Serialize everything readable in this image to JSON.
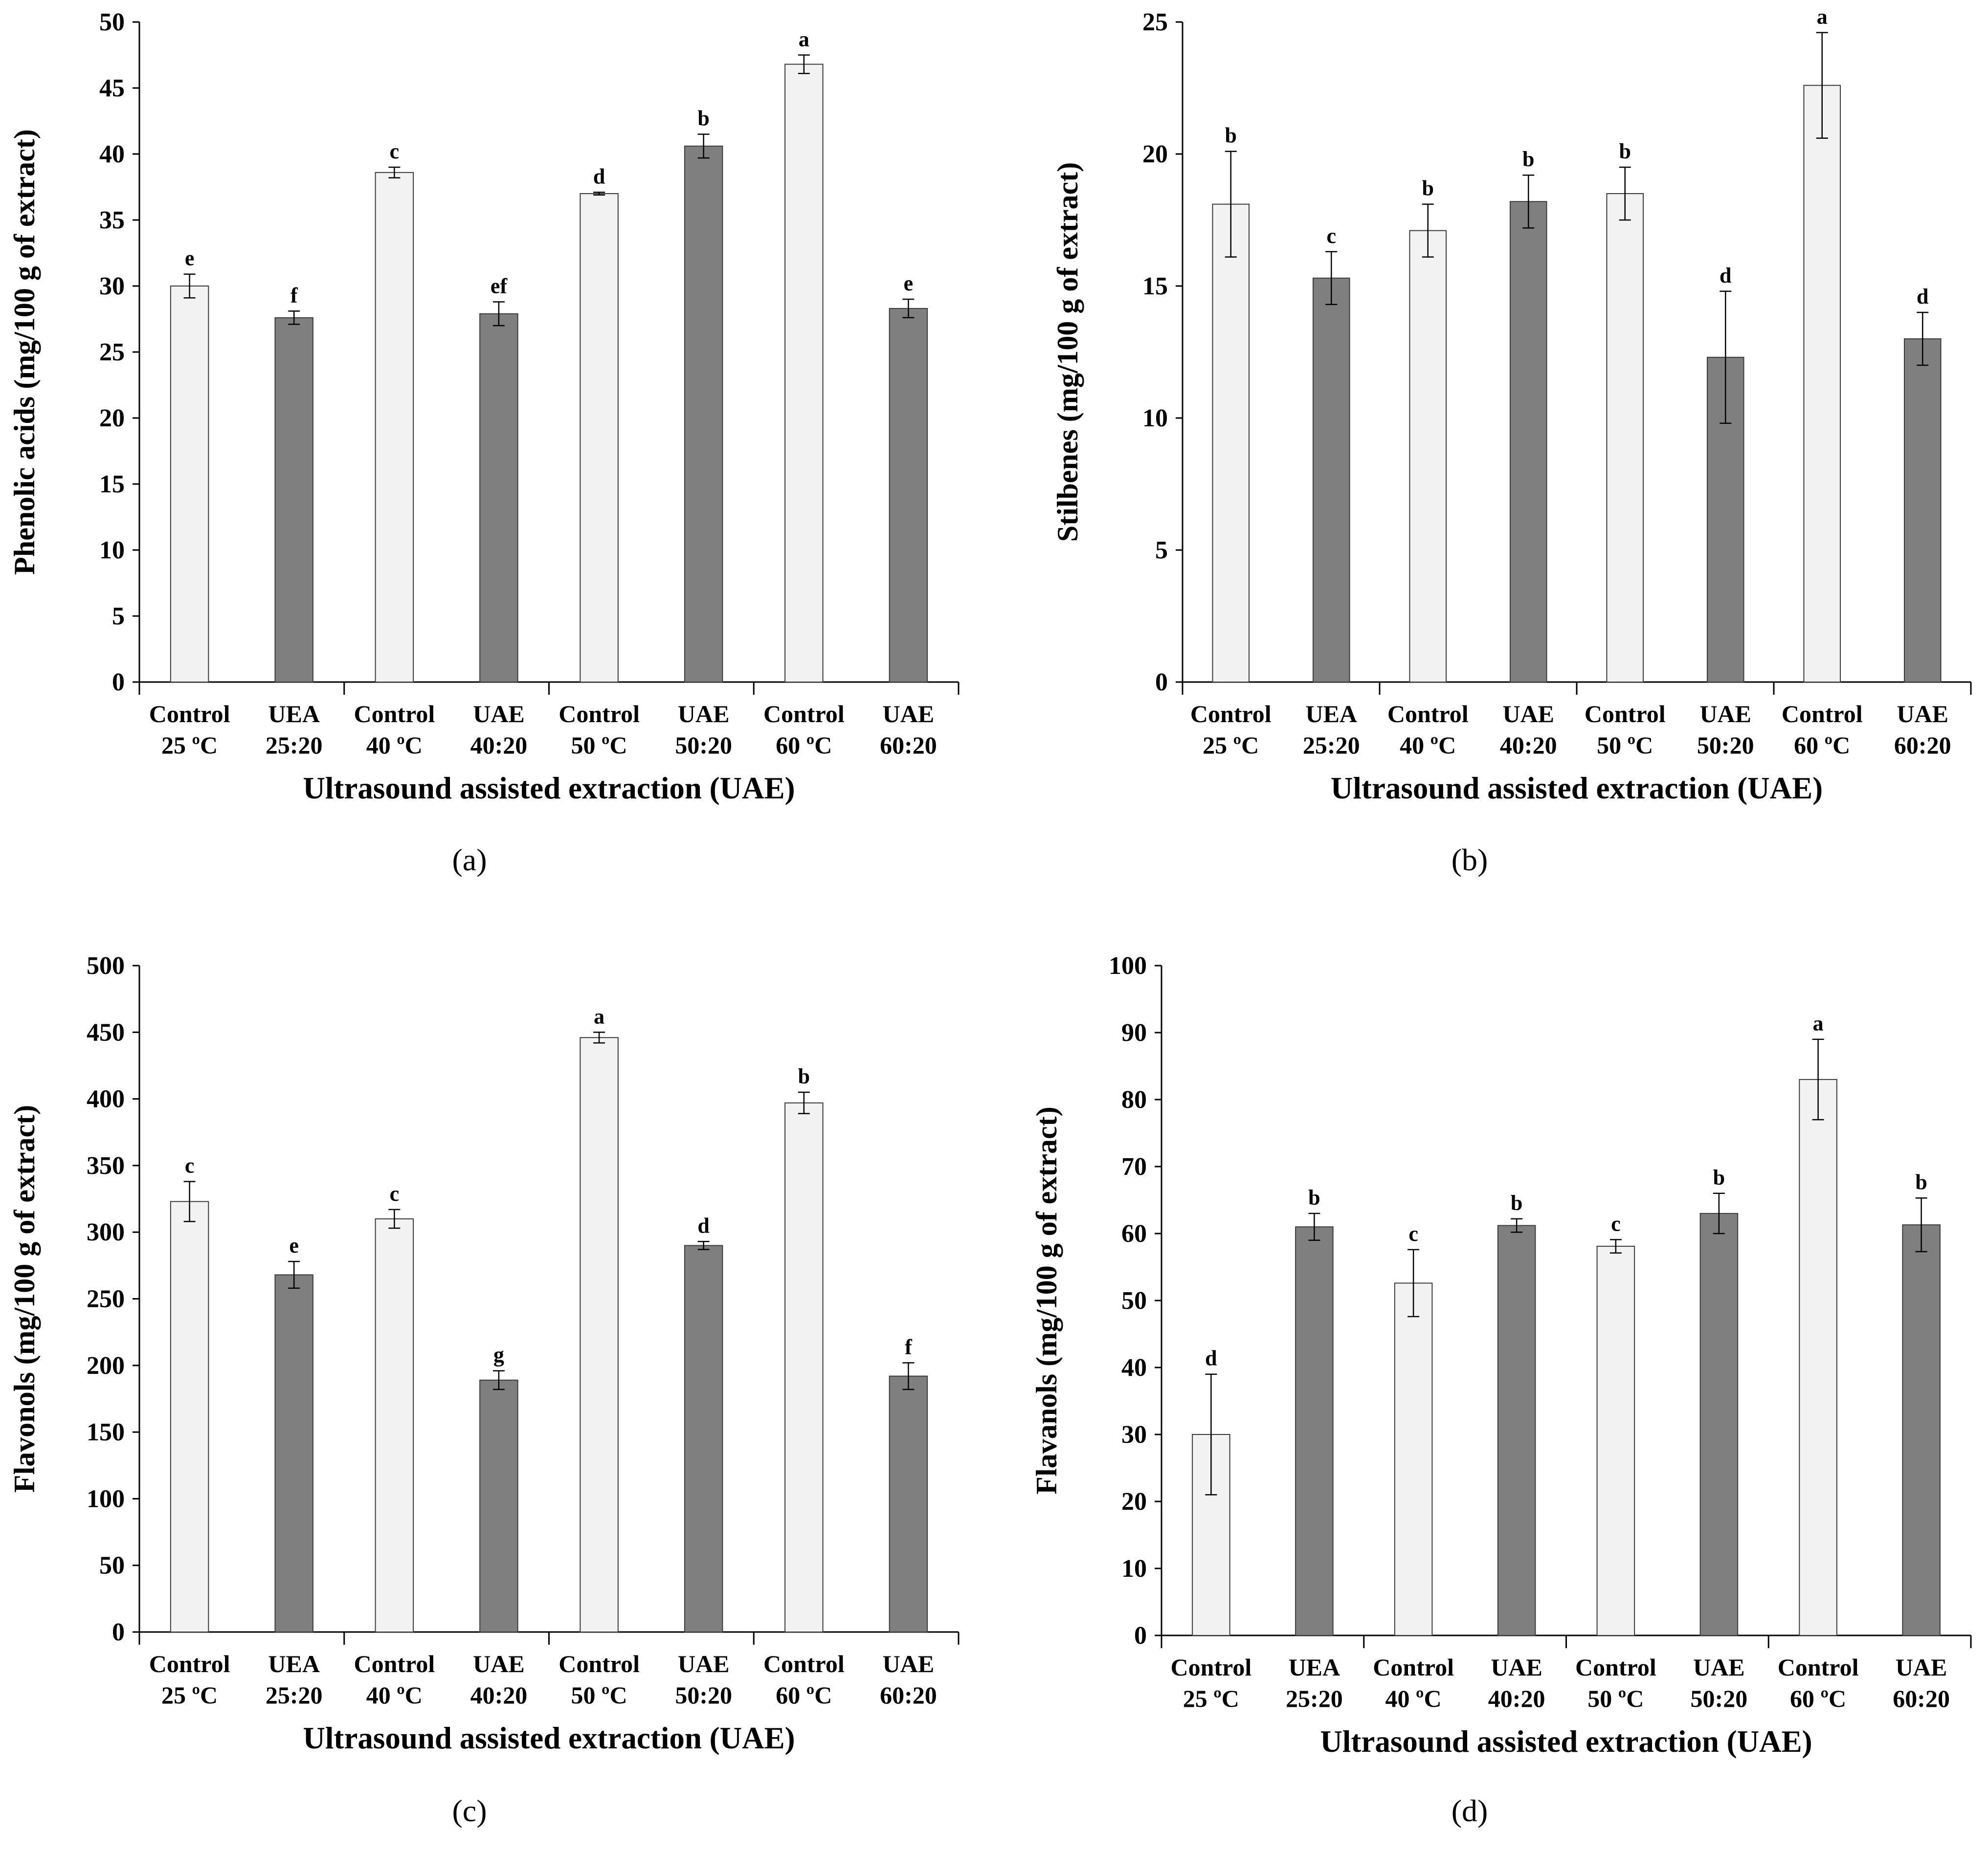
{
  "chart_data": [
    {
      "type": "bar",
      "panel_label": "(a)",
      "ylabel": "Phenolic acids (mg/100 g of extract)",
      "xlabel": "Ultrasound assisted extraction (UAE)",
      "ylim": [
        0,
        50
      ],
      "yticks": [
        "0",
        "5",
        "10",
        "15",
        "20",
        "25",
        "30",
        "35",
        "40",
        "45",
        "50"
      ],
      "categories": [
        {
          "line1": "Control",
          "line2": "25 ºC"
        },
        {
          "line1": "UEA",
          "line2": "25:20"
        },
        {
          "line1": "Control",
          "line2": "40 ºC"
        },
        {
          "line1": "UAE",
          "line2": "40:20"
        },
        {
          "line1": "Control",
          "line2": "50 ºC"
        },
        {
          "line1": "UAE",
          "line2": "50:20"
        },
        {
          "line1": "Control",
          "line2": "60 ºC"
        },
        {
          "line1": "UAE",
          "line2": "60:20"
        }
      ],
      "values": [
        30.0,
        27.6,
        38.6,
        27.9,
        37.0,
        40.6,
        46.8,
        28.3
      ],
      "errors": [
        0.9,
        0.5,
        0.4,
        0.9,
        0.1,
        0.9,
        0.7,
        0.7
      ],
      "letters": [
        "e",
        "f",
        "c",
        "ef",
        "d",
        "b",
        "a",
        "e"
      ],
      "grid": false
    },
    {
      "type": "bar",
      "panel_label": "(b)",
      "ylabel": "Stilbenes (mg/100 g of extract)",
      "xlabel": "Ultrasound assisted extraction (UAE)",
      "ylim": [
        0,
        25
      ],
      "yticks": [
        "0",
        "5",
        "10",
        "15",
        "20",
        "25"
      ],
      "categories": [
        {
          "line1": "Control",
          "line2": "25 ºC"
        },
        {
          "line1": "UEA",
          "line2": "25:20"
        },
        {
          "line1": "Control",
          "line2": "40 ºC"
        },
        {
          "line1": "UAE",
          "line2": "40:20"
        },
        {
          "line1": "Control",
          "line2": "50 ºC"
        },
        {
          "line1": "UAE",
          "line2": "50:20"
        },
        {
          "line1": "Control",
          "line2": "60 ºC"
        },
        {
          "line1": "UAE",
          "line2": "60:20"
        }
      ],
      "values": [
        18.1,
        15.3,
        17.1,
        18.2,
        18.5,
        12.3,
        22.6,
        13.0
      ],
      "errors": [
        2.0,
        1.0,
        1.0,
        1.0,
        1.0,
        2.5,
        2.0,
        1.0
      ],
      "letters": [
        "b",
        "c",
        "b",
        "b",
        "b",
        "d",
        "a",
        "d"
      ],
      "grid": false
    },
    {
      "type": "bar",
      "panel_label": "(c)",
      "ylabel": "Flavonols (mg/100 g of extract)",
      "xlabel": "Ultrasound assisted extraction (UAE)",
      "ylim": [
        0,
        500
      ],
      "yticks": [
        "0",
        "50",
        "100",
        "150",
        "200",
        "250",
        "300",
        "350",
        "400",
        "450",
        "500"
      ],
      "categories": [
        {
          "line1": "Control",
          "line2": "25 ºC"
        },
        {
          "line1": "UEA",
          "line2": "25:20"
        },
        {
          "line1": "Control",
          "line2": "40 ºC"
        },
        {
          "line1": "UAE",
          "line2": "40:20"
        },
        {
          "line1": "Control",
          "line2": "50 ºC"
        },
        {
          "line1": "UAE",
          "line2": "50:20"
        },
        {
          "line1": "Control",
          "line2": "60 ºC"
        },
        {
          "line1": "UAE",
          "line2": "60:20"
        }
      ],
      "values": [
        323,
        268,
        310,
        189,
        446,
        290,
        397,
        192
      ],
      "errors": [
        15,
        10,
        7,
        7,
        4,
        3,
        8,
        10
      ],
      "letters": [
        "c",
        "e",
        "c",
        "g",
        "a",
        "d",
        "b",
        "f"
      ],
      "grid": false
    },
    {
      "type": "bar",
      "panel_label": "(d)",
      "ylabel": "Flavanols (mg/100 g of extract)",
      "xlabel": "Ultrasound assisted extraction (UAE)",
      "ylim": [
        0,
        100
      ],
      "yticks": [
        "0",
        "10",
        "20",
        "30",
        "40",
        "50",
        "60",
        "70",
        "80",
        "90",
        "100"
      ],
      "categories": [
        {
          "line1": "Control",
          "line2": "25 ºC"
        },
        {
          "line1": "UEA",
          "line2": "25:20"
        },
        {
          "line1": "Control",
          "line2": "40 ºC"
        },
        {
          "line1": "UAE",
          "line2": "40:20"
        },
        {
          "line1": "Control",
          "line2": "50 ºC"
        },
        {
          "line1": "UAE",
          "line2": "50:20"
        },
        {
          "line1": "Control",
          "line2": "60 ºC"
        },
        {
          "line1": "UAE",
          "line2": "60:20"
        }
      ],
      "values": [
        30.0,
        61.0,
        52.6,
        61.2,
        58.1,
        63.0,
        83.0,
        61.3
      ],
      "errors": [
        9.0,
        2.0,
        5.0,
        1.0,
        1.0,
        3.0,
        6.0,
        4.0
      ],
      "letters": [
        "d",
        "b",
        "c",
        "b",
        "c",
        "b",
        "a",
        "b"
      ],
      "grid": false
    }
  ],
  "colors": {
    "control_fill": "#f2f2f2",
    "uae_fill": "#7f7f7f",
    "bar_stroke": "#3a3a3a",
    "axis": "#000000"
  }
}
